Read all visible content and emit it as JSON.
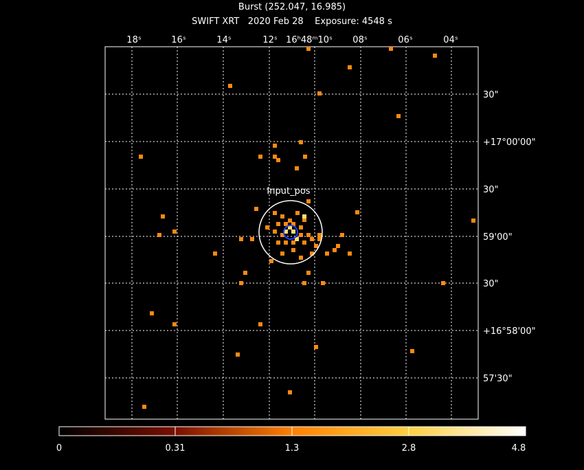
{
  "header": {
    "title": "Burst (252.047, 16.985)",
    "subtitle": "SWIFT XRT   2020 Feb 28    Exposure: 4548 s"
  },
  "ra_labels": [
    "18ˢ",
    "16ˢ",
    "14ˢ",
    "12ˢ",
    "16ʰ48ᵐ10ˢ",
    "08ˢ",
    "06ˢ",
    "04ˢ"
  ],
  "dec_labels": [
    "30\"",
    "+17°00'00\"",
    "30\"",
    "59'00\"",
    "30\"",
    "+16°58'00\"",
    "57'30\""
  ],
  "source_label": "Input_pos",
  "colorbar_labels": [
    "0",
    "0.31",
    "1.3",
    "2.8",
    "4.8"
  ]
}
